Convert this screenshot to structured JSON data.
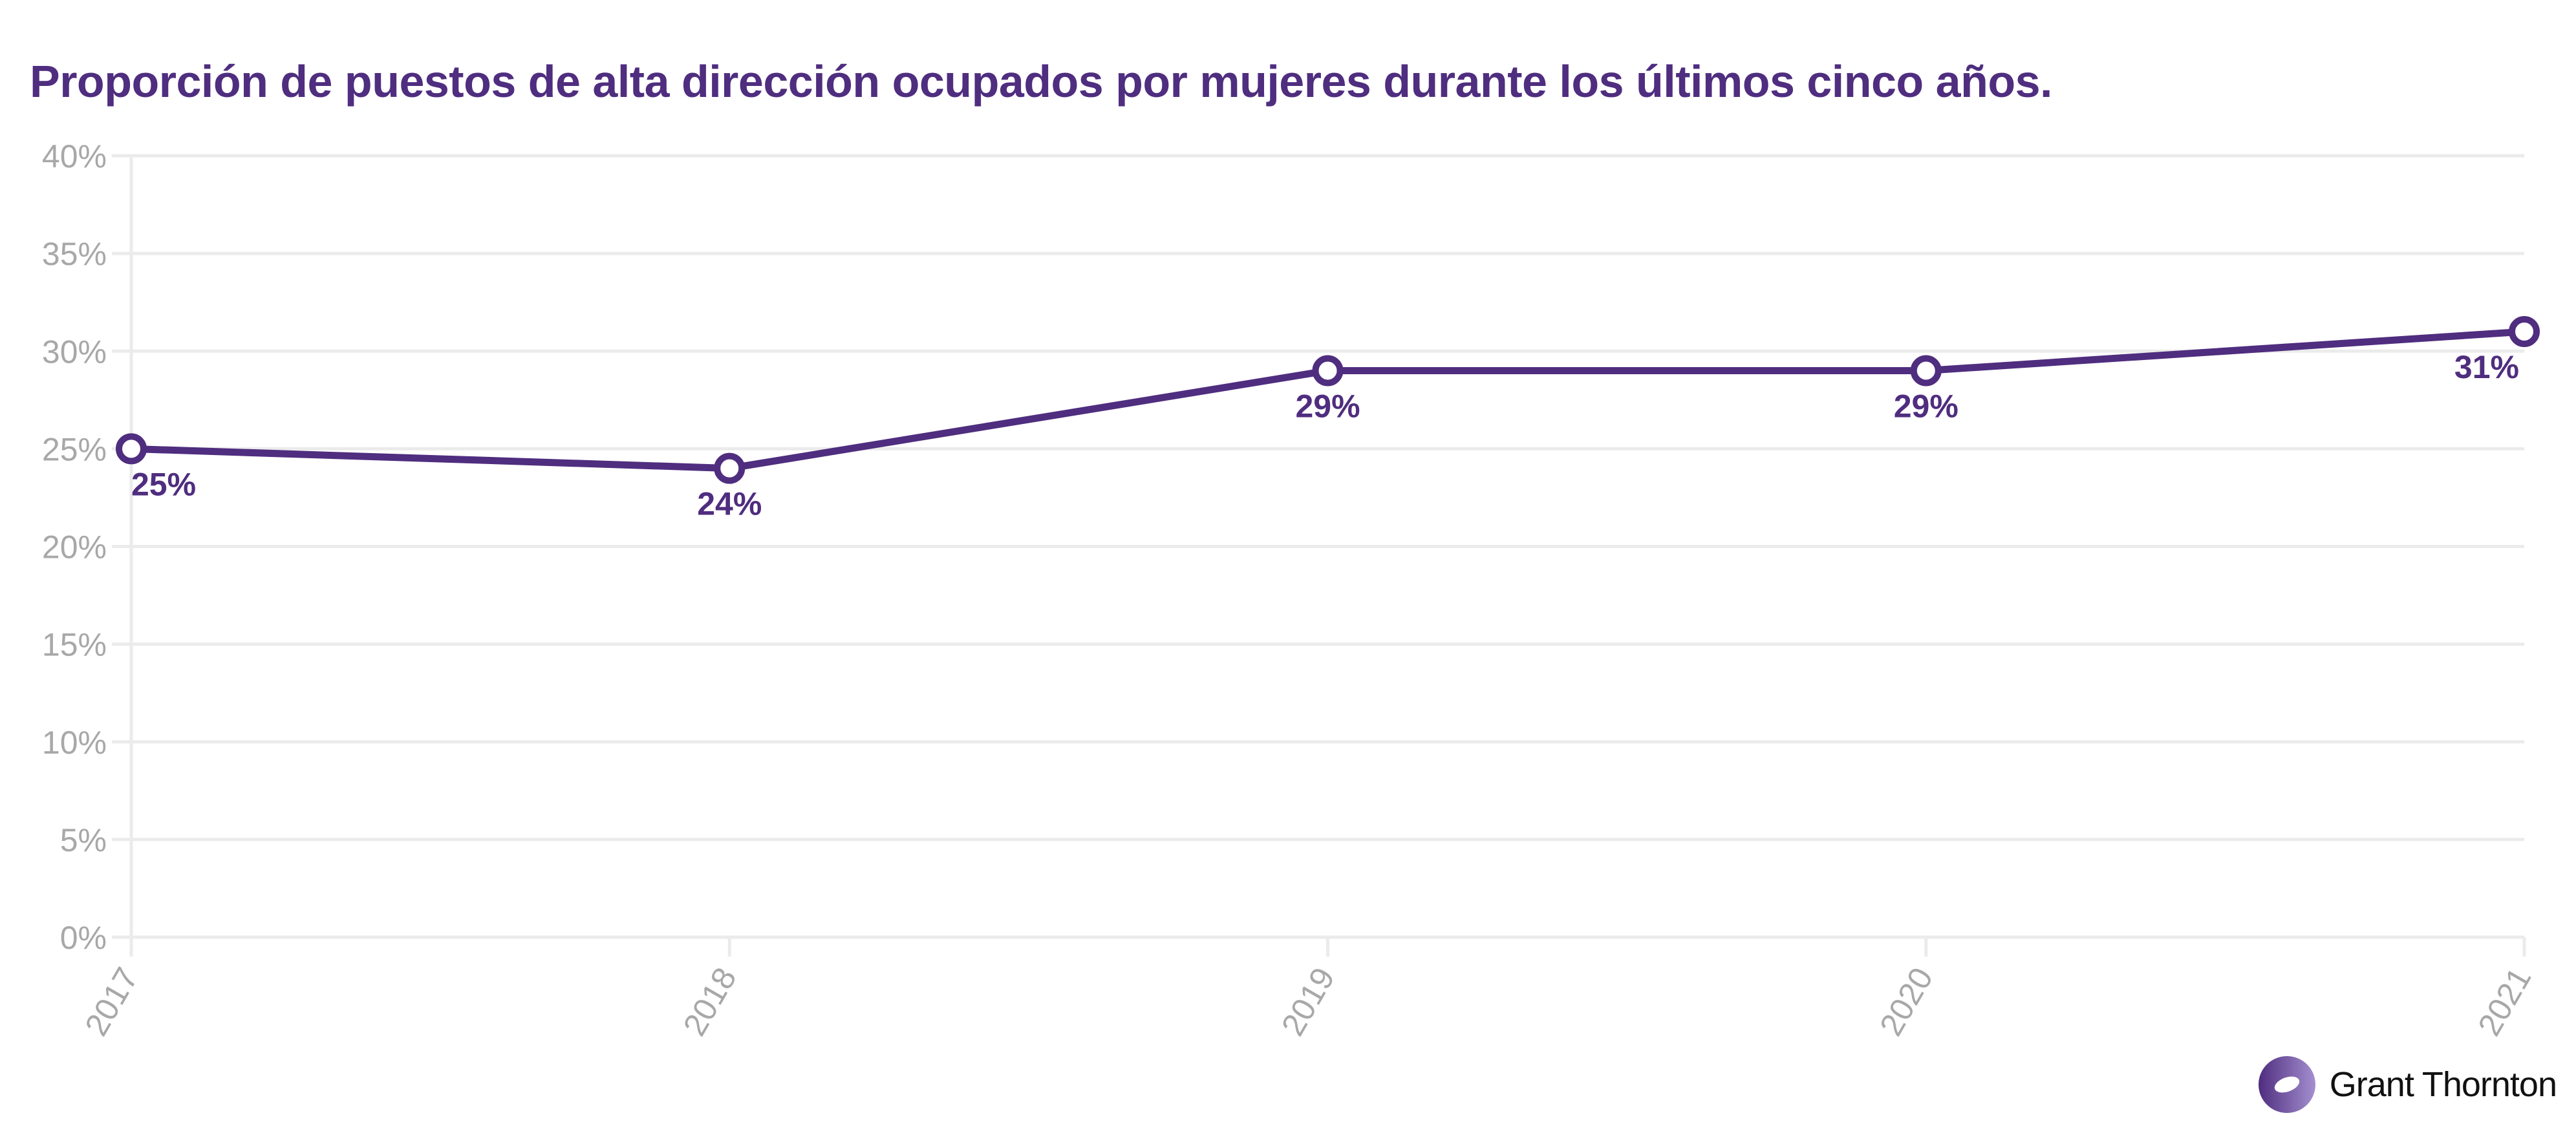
{
  "chart_data": {
    "type": "line",
    "title": "Proporción de puestos de alta dirección ocupados por mujeres durante los últimos cinco años.",
    "categories": [
      "2017",
      "2018",
      "2019",
      "2020",
      "2021"
    ],
    "values": [
      25,
      24,
      29,
      29,
      31
    ],
    "data_labels": [
      "25%",
      "24%",
      "29%",
      "29%",
      "31%"
    ],
    "ylim": [
      0,
      40
    ],
    "yticks": [
      "0%",
      "5%",
      "10%",
      "15%",
      "20%",
      "25%",
      "30%",
      "35%",
      "40%"
    ],
    "grid": true,
    "legend": "none",
    "colors": {
      "line": "#4f2d7f",
      "grid": "#ebebeb",
      "tick": "#a8a8a8"
    }
  },
  "brand": {
    "name": "Grant Thornton",
    "logo_colors": [
      "#4f2d7f",
      "#9b82c4"
    ]
  }
}
